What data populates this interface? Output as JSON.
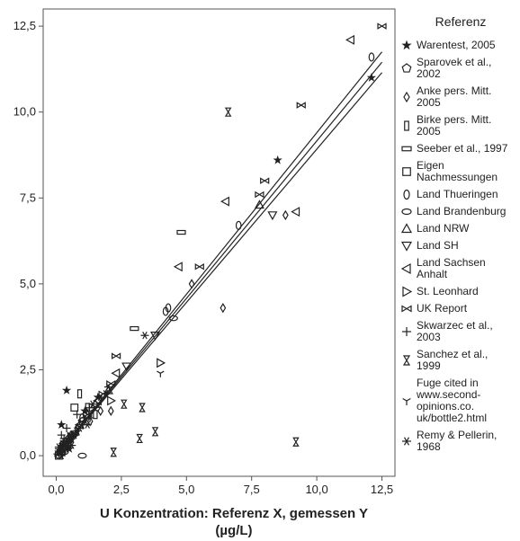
{
  "chart_data": {
    "type": "scatter",
    "xlabel": "U Konzentration: Referenz  X, gemessen Y",
    "xlabel_unit": "(µg/L)",
    "ylabel": "",
    "xlim": [
      -0.5,
      13.0
    ],
    "ylim": [
      -0.6,
      13.0
    ],
    "xticks": [
      0.0,
      2.5,
      5.0,
      7.5,
      10.0,
      12.5
    ],
    "yticks": [
      0.0,
      2.5,
      5.0,
      7.5,
      10.0,
      12.5
    ],
    "xtick_labels": [
      "0,0",
      "2,5",
      "5,0",
      "7,5",
      "10,0",
      "12,5"
    ],
    "ytick_labels": [
      "0,0",
      "2,5",
      "5,0",
      "7,5",
      "10,0",
      "12,5"
    ],
    "grid": false,
    "legend": {
      "title": "Referenz",
      "placement": "right",
      "entries": [
        {
          "label": [
            "Warentest, 2005"
          ],
          "marker": "star"
        },
        {
          "label": [
            "Sparovek et al.,",
            "2002"
          ],
          "marker": "pentagon"
        },
        {
          "label": [
            "Anke pers. Mitt.",
            "2005"
          ],
          "marker": "diamond"
        },
        {
          "label": [
            "Birke pers. Mitt.",
            "2005"
          ],
          "marker": "tall-rect"
        },
        {
          "label": [
            "Seeber et al., 1997"
          ],
          "marker": "wide-rect"
        },
        {
          "label": [
            "Eigen",
            "Nachmessungen"
          ],
          "marker": "square"
        },
        {
          "label": [
            "Land Thueringen"
          ],
          "marker": "tall-ellipse"
        },
        {
          "label": [
            "Land Brandenburg"
          ],
          "marker": "wide-ellipse"
        },
        {
          "label": [
            "Land NRW"
          ],
          "marker": "triangle-up"
        },
        {
          "label": [
            "Land SH"
          ],
          "marker": "triangle-down"
        },
        {
          "label": [
            "Land  Sachsen",
            "Anhalt"
          ],
          "marker": "triangle-left"
        },
        {
          "label": [
            "St. Leonhard"
          ],
          "marker": "triangle-right"
        },
        {
          "label": [
            "UK Report"
          ],
          "marker": "bowtie"
        },
        {
          "label": [
            "Skwarzec et al.,",
            "2003"
          ],
          "marker": "plus"
        },
        {
          "label": [
            "Sanchez et al.,",
            "1999"
          ],
          "marker": "hourglass"
        },
        {
          "label": [
            "Fuge cited in",
            "www.second-",
            "opinions.co.",
            "uk/bottle2.html"
          ],
          "marker": "tri"
        },
        {
          "label": [
            "Remy & Pellerin,",
            "1968"
          ],
          "marker": "asterisk"
        }
      ]
    },
    "regression_lines": [
      {
        "x": [
          0,
          12.5
        ],
        "y": [
          0,
          11.75
        ]
      },
      {
        "x": [
          0,
          12.5
        ],
        "y": [
          0,
          11.45
        ]
      },
      {
        "x": [
          0,
          12.5
        ],
        "y": [
          0,
          11.15
        ]
      }
    ],
    "series": [
      {
        "marker": "star",
        "points": [
          [
            8.5,
            8.6
          ],
          [
            12.1,
            11.0
          ],
          [
            0.4,
            1.9
          ],
          [
            0.2,
            0.9
          ],
          [
            0.3,
            0.4
          ],
          [
            0.5,
            0.2
          ],
          [
            0.1,
            0.1
          ],
          [
            0.8,
            0.7
          ],
          [
            1.1,
            1.3
          ],
          [
            0.6,
            0.6
          ],
          [
            1.6,
            1.7
          ]
        ]
      },
      {
        "marker": "pentagon",
        "points": [
          [
            0.5,
            0.5
          ],
          [
            0.2,
            0.1
          ],
          [
            1.0,
            1.0
          ]
        ]
      },
      {
        "marker": "diamond",
        "points": [
          [
            8.8,
            7.0
          ],
          [
            6.4,
            4.3
          ],
          [
            5.2,
            5.0
          ],
          [
            2.1,
            1.3
          ],
          [
            1.7,
            1.3
          ],
          [
            1.3,
            1.0
          ],
          [
            0.8,
            0.8
          ],
          [
            0.6,
            0.5
          ]
        ]
      },
      {
        "marker": "tall-rect",
        "points": [
          [
            0.9,
            1.8
          ],
          [
            1.5,
            1.2
          ],
          [
            1.2,
            1.4
          ],
          [
            0.5,
            0.4
          ]
        ]
      },
      {
        "marker": "wide-rect",
        "points": [
          [
            4.8,
            6.5
          ],
          [
            3.0,
            3.7
          ],
          [
            0.4,
            0.3
          ],
          [
            0.2,
            0.1
          ]
        ]
      },
      {
        "marker": "square",
        "points": [
          [
            0.7,
            1.4
          ],
          [
            0.3,
            0.3
          ],
          [
            0.1,
            0.0
          ]
        ]
      },
      {
        "marker": "tall-ellipse",
        "points": [
          [
            12.1,
            11.6
          ],
          [
            7.0,
            6.7
          ],
          [
            4.3,
            4.3
          ],
          [
            4.2,
            4.2
          ],
          [
            1.0,
            1.1
          ],
          [
            0.6,
            0.6
          ],
          [
            0.4,
            0.4
          ],
          [
            0.2,
            0.2
          ]
        ]
      },
      {
        "marker": "wide-ellipse",
        "points": [
          [
            4.5,
            4.0
          ],
          [
            1.0,
            0.0
          ],
          [
            0.3,
            0.1
          ],
          [
            0.1,
            0.0
          ]
        ]
      },
      {
        "marker": "triangle-up",
        "points": [
          [
            7.8,
            7.3
          ],
          [
            2.0,
            1.9
          ],
          [
            1.5,
            1.5
          ],
          [
            0.9,
            0.9
          ],
          [
            0.5,
            0.5
          ],
          [
            0.2,
            0.2
          ]
        ]
      },
      {
        "marker": "triangle-down",
        "points": [
          [
            8.3,
            7.0
          ],
          [
            3.8,
            3.5
          ],
          [
            2.7,
            2.6
          ],
          [
            1.3,
            1.3
          ],
          [
            0.4,
            0.4
          ]
        ]
      },
      {
        "marker": "triangle-left",
        "points": [
          [
            11.3,
            12.1
          ],
          [
            9.2,
            7.1
          ],
          [
            6.5,
            7.4
          ],
          [
            4.7,
            5.5
          ],
          [
            2.3,
            2.4
          ],
          [
            1.6,
            1.6
          ],
          [
            0.9,
            0.9
          ]
        ]
      },
      {
        "marker": "triangle-right",
        "points": [
          [
            4.0,
            2.7
          ],
          [
            2.1,
            1.6
          ],
          [
            1.4,
            1.4
          ],
          [
            0.7,
            0.6
          ]
        ]
      },
      {
        "marker": "bowtie",
        "points": [
          [
            12.5,
            12.5
          ],
          [
            9.4,
            10.2
          ],
          [
            8.0,
            8.0
          ],
          [
            7.8,
            7.6
          ],
          [
            5.5,
            5.5
          ],
          [
            2.3,
            2.9
          ],
          [
            2.1,
            2.1
          ],
          [
            1.8,
            1.8
          ],
          [
            1.2,
            1.2
          ],
          [
            0.6,
            0.6
          ],
          [
            0.3,
            0.3
          ]
        ]
      },
      {
        "marker": "plus",
        "points": [
          [
            0.1,
            0.2
          ],
          [
            0.3,
            0.5
          ],
          [
            0.4,
            0.8
          ],
          [
            0.6,
            0.5
          ],
          [
            0.8,
            1.2
          ],
          [
            1.0,
            0.9
          ],
          [
            1.3,
            1.1
          ],
          [
            0.2,
            0.6
          ]
        ]
      },
      {
        "marker": "hourglass",
        "points": [
          [
            6.6,
            10.0
          ],
          [
            9.2,
            0.4
          ],
          [
            3.3,
            1.4
          ],
          [
            3.2,
            0.5
          ],
          [
            3.8,
            0.7
          ],
          [
            2.2,
            0.1
          ],
          [
            2.6,
            1.5
          ]
        ]
      },
      {
        "marker": "tri",
        "points": [
          [
            4.0,
            2.4
          ],
          [
            0.3,
            0.2
          ],
          [
            0.5,
            0.4
          ]
        ]
      },
      {
        "marker": "asterisk",
        "points": [
          [
            3.4,
            3.5
          ],
          [
            1.7,
            1.7
          ],
          [
            1.4,
            1.5
          ],
          [
            1.1,
            1.1
          ],
          [
            0.9,
            0.8
          ],
          [
            0.7,
            0.6
          ],
          [
            0.5,
            0.5
          ],
          [
            0.3,
            0.3
          ],
          [
            0.15,
            0.1
          ],
          [
            0.05,
            0.05
          ],
          [
            0.2,
            0.0
          ],
          [
            0.4,
            0.2
          ],
          [
            0.6,
            0.3
          ],
          [
            0.1,
            0.25
          ],
          [
            0.25,
            0.35
          ],
          [
            1.2,
            0.9
          ],
          [
            2.0,
            2.0
          ],
          [
            1.9,
            1.8
          ]
        ]
      }
    ]
  }
}
